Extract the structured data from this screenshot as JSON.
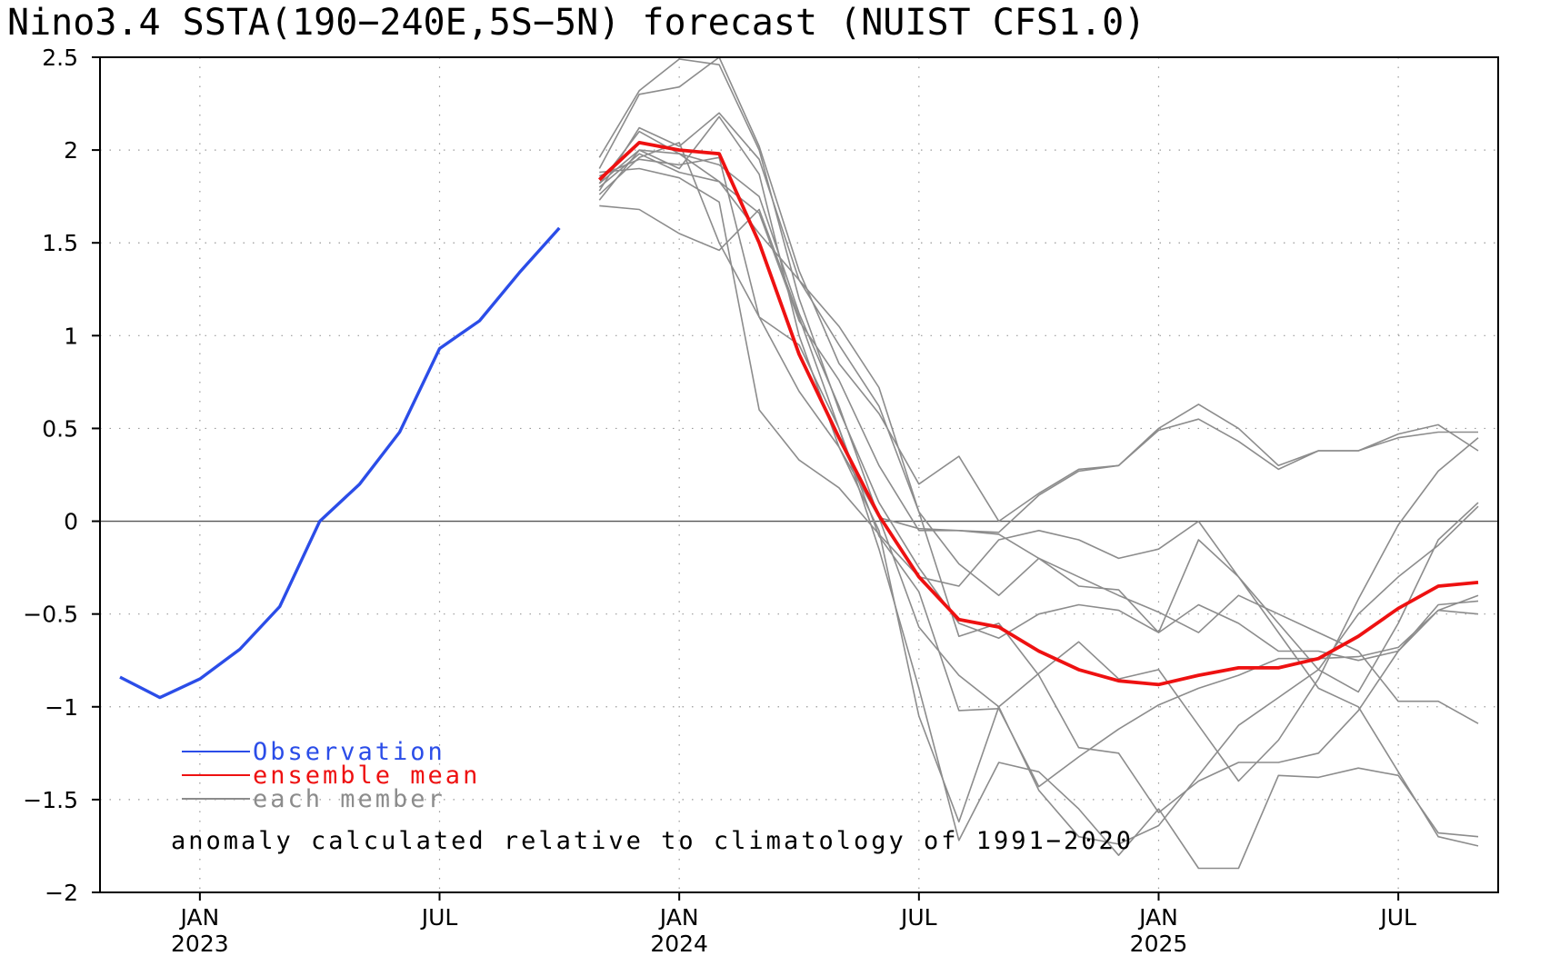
{
  "chart_data": {
    "type": "line",
    "title": "Nino3.4 SSTA(190−240E,5S−5N) forecast (NUIST CFS1.0)",
    "ylim": [
      -2,
      2.5
    ],
    "yticks": [
      2.5,
      2,
      1.5,
      1,
      0.5,
      0,
      -0.5,
      -1,
      -1.5,
      -2
    ],
    "ytick_labels": [
      "2.5",
      "2",
      "1.5",
      "1",
      "0.5",
      "0",
      "−0.5",
      "−1",
      "−1.5",
      "−2"
    ],
    "x_range": [
      "2022-11",
      "2025-09"
    ],
    "xticks": [
      {
        "date": "2023-01",
        "month": "JAN",
        "year": "2023"
      },
      {
        "date": "2023-07",
        "month": "JUL",
        "year": ""
      },
      {
        "date": "2024-01",
        "month": "JAN",
        "year": "2024"
      },
      {
        "date": "2024-07",
        "month": "JUL",
        "year": ""
      },
      {
        "date": "2025-01",
        "month": "JAN",
        "year": "2025"
      },
      {
        "date": "2025-07",
        "month": "JUL",
        "year": ""
      }
    ],
    "grid": true,
    "zero_line": true,
    "annotation": "anomaly calculated relative to climatology of 1991−2020",
    "legend": [
      {
        "label": "Observation",
        "color": "#2b4de8"
      },
      {
        "label": "ensemble mean",
        "color": "#ee1111"
      },
      {
        "label": "each member",
        "color": "#8c8c8c"
      }
    ],
    "series": [
      {
        "name": "Observation",
        "color": "#2b4de8",
        "x": [
          "2022-11",
          "2022-12",
          "2023-01",
          "2023-02",
          "2023-03",
          "2023-04",
          "2023-05",
          "2023-06",
          "2023-07",
          "2023-08",
          "2023-09",
          "2023-10"
        ],
        "values": [
          -0.84,
          -0.95,
          -0.85,
          -0.69,
          -0.46,
          0.0,
          0.2,
          0.48,
          0.93,
          1.08,
          1.34,
          1.58
        ]
      },
      {
        "name": "ensemble mean",
        "color": "#ee1111",
        "x": [
          "2023-11",
          "2023-12",
          "2024-01",
          "2024-02",
          "2024-03",
          "2024-04",
          "2024-05",
          "2024-06",
          "2024-07",
          "2024-08",
          "2024-09",
          "2024-10",
          "2024-11",
          "2024-12",
          "2025-01",
          "2025-02",
          "2025-03",
          "2025-04",
          "2025-05",
          "2025-06",
          "2025-07",
          "2025-08",
          "2025-09"
        ],
        "values": [
          1.84,
          2.04,
          2.0,
          1.98,
          1.5,
          0.9,
          0.45,
          0.03,
          -0.3,
          -0.53,
          -0.57,
          -0.7,
          -0.8,
          -0.86,
          -0.88,
          -0.83,
          -0.79,
          -0.79,
          -0.74,
          -0.62,
          -0.47,
          -0.35,
          -0.33
        ]
      },
      {
        "name": "each member",
        "color": "#8c8c8c",
        "x": [
          "2023-11",
          "2023-12",
          "2024-01",
          "2024-02",
          "2024-03",
          "2024-04",
          "2024-05",
          "2024-06",
          "2024-07",
          "2024-08",
          "2024-09",
          "2024-10",
          "2024-11",
          "2024-12",
          "2025-01",
          "2025-02",
          "2025-03",
          "2025-04",
          "2025-05",
          "2025-06",
          "2025-07",
          "2025-08",
          "2025-09"
        ],
        "members": [
          [
            1.96,
            2.32,
            2.49,
            2.46,
            2.0,
            1.2,
            0.6,
            0.1,
            -0.25,
            -0.55,
            -0.63,
            -0.5,
            -0.45,
            -0.48,
            -0.6,
            -0.45,
            -0.55,
            -0.7,
            -0.7,
            -0.75,
            -0.7,
            -0.48,
            -0.5
          ],
          [
            1.9,
            2.3,
            2.34,
            2.5,
            2.02,
            1.35,
            0.85,
            0.58,
            0.2,
            0.35,
            0.0,
            0.15,
            0.28,
            0.3,
            0.5,
            0.63,
            0.5,
            0.3,
            0.38,
            0.38,
            0.47,
            0.52,
            0.38
          ],
          [
            1.78,
            2.12,
            2.02,
            2.2,
            1.95,
            1.3,
            0.95,
            0.62,
            0.05,
            -0.23,
            -0.4,
            -0.2,
            -0.3,
            -0.4,
            -0.49,
            -0.6,
            -0.4,
            -0.5,
            -0.6,
            -0.7,
            -0.97,
            -0.97,
            -1.09
          ],
          [
            1.73,
            2.0,
            1.98,
            1.83,
            1.66,
            1.08,
            0.76,
            0.3,
            -0.05,
            -0.05,
            -0.07,
            -0.2,
            -0.35,
            -0.37,
            -0.6,
            -0.1,
            -0.3,
            -0.55,
            -0.8,
            -0.92,
            -0.55,
            -0.1,
            0.1
          ],
          [
            1.86,
            1.95,
            1.92,
            1.96,
            1.1,
            0.7,
            0.4,
            0.02,
            -0.04,
            -0.05,
            -0.06,
            0.14,
            0.27,
            0.3,
            0.49,
            0.55,
            0.43,
            0.28,
            0.38,
            0.38,
            0.45,
            0.48,
            0.48
          ],
          [
            1.8,
            1.98,
            1.88,
            1.83,
            1.55,
            1.3,
            1.05,
            0.72,
            0.05,
            -0.62,
            -0.55,
            -0.83,
            -1.22,
            -1.25,
            -1.57,
            -1.4,
            -1.3,
            -1.3,
            -1.25,
            -1.02,
            -0.7,
            -0.45,
            -0.43
          ],
          [
            1.7,
            1.68,
            1.55,
            1.46,
            1.68,
            1.1,
            0.5,
            -0.08,
            -0.38,
            -1.02,
            -1.01,
            -1.43,
            -1.27,
            -1.12,
            -0.99,
            -0.9,
            -0.83,
            -0.74,
            -0.74,
            -0.73,
            -0.68,
            -0.48,
            -0.4
          ],
          [
            1.88,
            1.9,
            1.85,
            1.72,
            0.6,
            0.33,
            0.18,
            -0.07,
            -0.3,
            -0.35,
            -0.1,
            -0.05,
            -0.1,
            -0.2,
            -0.15,
            0.0,
            -0.3,
            -0.6,
            -0.9,
            -1.0,
            -1.35,
            -1.7,
            -1.75
          ],
          [
            1.82,
            2.0,
            1.9,
            2.18,
            1.87,
            1.0,
            0.4,
            -0.05,
            -1.05,
            -1.62,
            -1.0,
            -1.45,
            -1.7,
            -1.74,
            -1.64,
            -1.37,
            -1.1,
            -0.95,
            -0.8,
            -0.5,
            -0.3,
            -0.13,
            0.08
          ],
          [
            1.76,
            1.96,
            2.04,
            1.5,
            1.1,
            0.95,
            0.5,
            -0.15,
            -0.9,
            -1.72,
            -1.3,
            -1.35,
            -1.55,
            -1.8,
            -1.55,
            -1.87,
            -1.87,
            -1.37,
            -1.38,
            -1.33,
            -1.37,
            -1.68,
            -1.7
          ],
          [
            1.82,
            2.1,
            1.98,
            1.92,
            1.75,
            1.12,
            0.62,
            0.02,
            -0.57,
            -0.83,
            -1.0,
            -0.82,
            -0.65,
            -0.85,
            -0.8,
            -1.1,
            -1.4,
            -1.18,
            -0.85,
            -0.42,
            -0.02,
            0.27,
            0.45
          ]
        ]
      }
    ]
  }
}
